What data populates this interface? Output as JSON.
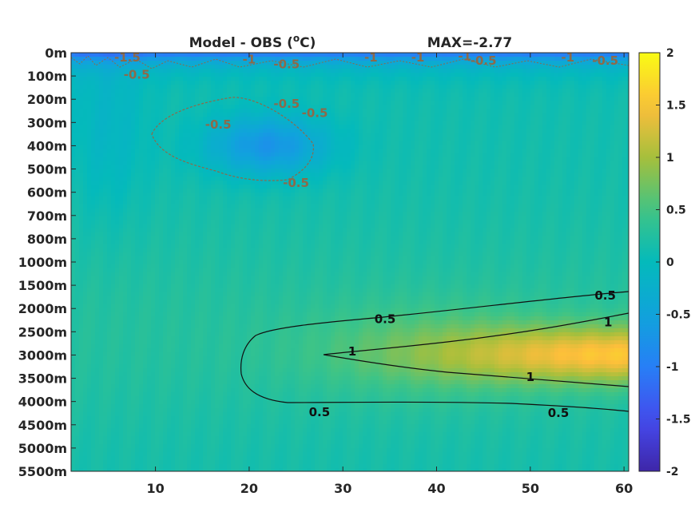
{
  "chart_data": {
    "type": "heatmap",
    "title": "Model - OBS (",
    "title_unit_sup": "o",
    "title_unit_tail": "C)",
    "max_annotation": "MAX=-2.77",
    "x": {
      "ticks": [
        10,
        20,
        30,
        40,
        50,
        60
      ],
      "lim": [
        1,
        60.5
      ]
    },
    "y": {
      "tick_labels": [
        "0m",
        "100m",
        "200m",
        "300m",
        "400m",
        "500m",
        "600m",
        "700m",
        "800m",
        "1000m",
        "1500m",
        "2000m",
        "2500m",
        "3000m",
        "3500m",
        "4000m",
        "4500m",
        "5000m",
        "5500m"
      ],
      "direction": "depth increasing downward, one row per level"
    },
    "colorbar": {
      "ticks": [
        2,
        1.5,
        1,
        0.5,
        0,
        -0.5,
        -1,
        -1.5,
        -2
      ],
      "lim": [
        -2,
        2
      ],
      "colormap": "parula"
    },
    "anomalies": [
      {
        "x": 22,
        "level": 4.0,
        "value": -0.85,
        "sx": 6.5,
        "sy": 1.3
      },
      {
        "x": 60.5,
        "level": 13.0,
        "value": 1.25,
        "sx": 18,
        "sy": 1.2
      },
      {
        "x": 40,
        "level": 12.8,
        "value": 0.35,
        "sx": 14,
        "sy": 2.0
      }
    ],
    "contour_labels": [
      {
        "text": "-1.5",
        "x": 7,
        "level": 0.2,
        "color": "#8c6a4a"
      },
      {
        "text": "-0.5",
        "x": 8,
        "level": 0.95,
        "color": "#8c6a4a"
      },
      {
        "text": "-1",
        "x": 20,
        "level": 0.3,
        "color": "#8c6a4a"
      },
      {
        "text": "-0.5",
        "x": 24,
        "level": 0.5,
        "color": "#8c6a4a"
      },
      {
        "text": "-1",
        "x": 33,
        "level": 0.2,
        "color": "#8c6a4a"
      },
      {
        "text": "-1",
        "x": 38,
        "level": 0.2,
        "color": "#8c6a4a"
      },
      {
        "text": "-1",
        "x": 43,
        "level": 0.15,
        "color": "#8c6a4a"
      },
      {
        "text": "-0.5",
        "x": 45,
        "level": 0.35,
        "color": "#8c6a4a"
      },
      {
        "text": "-1",
        "x": 54,
        "level": 0.2,
        "color": "#8c6a4a"
      },
      {
        "text": "-0.5",
        "x": 58,
        "level": 0.35,
        "color": "#8c6a4a"
      },
      {
        "text": "-0.5",
        "x": 16.7,
        "level": 3.1,
        "color": "#8c6a4a"
      },
      {
        "text": "-0.5",
        "x": 24,
        "level": 2.2,
        "color": "#8c6a4a"
      },
      {
        "text": "-0.5",
        "x": 27,
        "level": 2.6,
        "color": "#8c6a4a"
      },
      {
        "text": "-0.5",
        "x": 25,
        "level": 5.6,
        "color": "#8c6a4a"
      },
      {
        "text": "0.5",
        "x": 58,
        "level": 10.45,
        "color": "#111111"
      },
      {
        "text": "0.5",
        "x": 34.5,
        "level": 11.45,
        "color": "#111111"
      },
      {
        "text": "1",
        "x": 58.3,
        "level": 11.6,
        "color": "#111111"
      },
      {
        "text": "1",
        "x": 31,
        "level": 12.85,
        "color": "#111111"
      },
      {
        "text": "1",
        "x": 50,
        "level": 13.95,
        "color": "#111111"
      },
      {
        "text": "0.5",
        "x": 27.5,
        "level": 15.45,
        "color": "#111111"
      },
      {
        "text": "0.5",
        "x": 53,
        "level": 15.5,
        "color": "#111111"
      }
    ]
  }
}
